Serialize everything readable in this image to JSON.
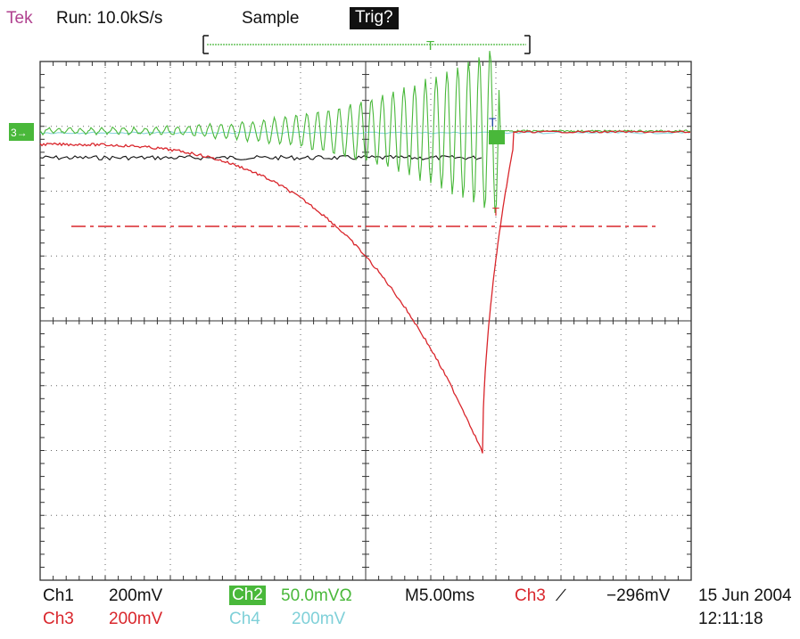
{
  "header": {
    "brand": "Tek",
    "run_status": "Run: 10.0kS/s",
    "acq_mode": "Sample",
    "trigger_status": "Trig?"
  },
  "footer": {
    "ch1": {
      "label": "Ch1",
      "scale": "200mV"
    },
    "ch2": {
      "label": "Ch2",
      "scale": "50.0mVΩ"
    },
    "ch3": {
      "label": "Ch3",
      "scale": "200mV"
    },
    "ch4": {
      "label": "Ch4",
      "scale": "200mV"
    },
    "timebase": "M5.00ms",
    "trigger_source": "Ch3",
    "trigger_slope": "∕",
    "trigger_level": "−296mV",
    "date": "15 Jun 2004",
    "time": "12:11:18"
  },
  "colors": {
    "ch1": "#111111",
    "ch2": "#49b83a",
    "ch3": "#d9262c",
    "ch4": "#7fd0d8",
    "brand": "#b0418f",
    "grid": "#555555"
  }
}
